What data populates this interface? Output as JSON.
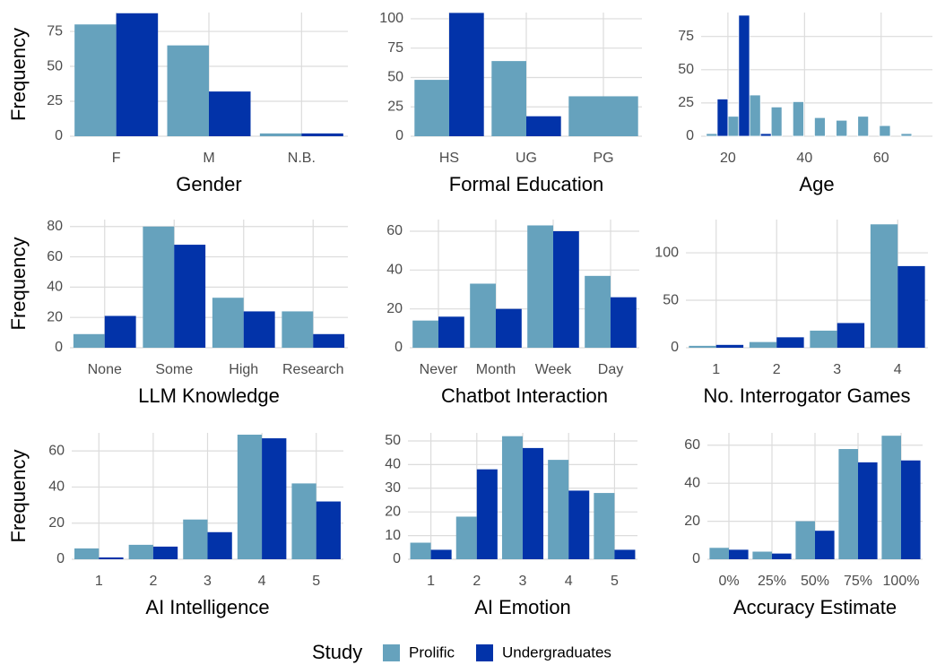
{
  "legend_title": "Study",
  "chart_data": [
    {
      "type": "bar",
      "xlabel": "Gender",
      "ylabel": "Frequency",
      "categories": [
        "F",
        "M",
        "N.B."
      ],
      "series": [
        {
          "name": "Prolific",
          "color": "#66a2bd",
          "values": [
            80,
            65,
            2
          ]
        },
        {
          "name": "Undergraduates",
          "color": "#0233a9",
          "values": [
            88,
            32,
            2
          ]
        }
      ],
      "ylim": [
        0,
        88.5
      ],
      "yticks": [
        0,
        25,
        50,
        75
      ],
      "grid": true
    },
    {
      "type": "bar",
      "xlabel": "Formal Education",
      "categories": [
        "HS",
        "UG",
        "PG"
      ],
      "series": [
        {
          "name": "Prolific",
          "color": "#66a2bd",
          "values": [
            48,
            64,
            34
          ]
        },
        {
          "name": "Undergraduates",
          "color": "#0233a9",
          "values": [
            105,
            17,
            null
          ]
        }
      ],
      "ylim": [
        0,
        105.3
      ],
      "yticks": [
        0,
        25,
        50,
        75,
        100
      ],
      "grid": true
    },
    {
      "type": "histogram",
      "xlabel": "Age",
      "bins": [
        11.5,
        17.2,
        22.8,
        28.5,
        34.1,
        39.8,
        45.4,
        51.1,
        56.7,
        62.4,
        68.0
      ],
      "series": [
        {
          "name": "Prolific",
          "color": "#66a2bd",
          "values": [
            2,
            15,
            31,
            22,
            26,
            14,
            12,
            15,
            8,
            2
          ]
        },
        {
          "name": "Undergraduates",
          "color": "#0233a9",
          "values": [
            0,
            28,
            91,
            2,
            0,
            0,
            0,
            0,
            0,
            0
          ]
        }
      ],
      "xlim": [
        13,
        73.4
      ],
      "xticks": [
        20,
        40,
        60
      ],
      "ylim": [
        0,
        93
      ],
      "yticks": [
        0,
        25,
        50,
        75
      ],
      "grid": true
    },
    {
      "type": "bar",
      "xlabel": "LLM Knowledge",
      "ylabel": "Frequency",
      "categories": [
        "None",
        "Some",
        "High",
        "Research"
      ],
      "series": [
        {
          "name": "Prolific",
          "color": "#66a2bd",
          "values": [
            9,
            80,
            33,
            24
          ]
        },
        {
          "name": "Undergraduates",
          "color": "#0233a9",
          "values": [
            21,
            68,
            24,
            9
          ]
        }
      ],
      "ylim": [
        0,
        84.6
      ],
      "yticks": [
        0,
        20,
        40,
        60,
        80
      ],
      "grid": true
    },
    {
      "type": "bar",
      "xlabel": "Chatbot Interaction",
      "categories": [
        "Never",
        "Month",
        "Week",
        "Day"
      ],
      "series": [
        {
          "name": "Prolific",
          "color": "#66a2bd",
          "values": [
            14,
            33,
            63,
            37
          ]
        },
        {
          "name": "Undergraduates",
          "color": "#0233a9",
          "values": [
            16,
            20,
            60,
            26
          ]
        }
      ],
      "ylim": [
        0,
        66
      ],
      "yticks": [
        0,
        20,
        40,
        60
      ],
      "grid": true
    },
    {
      "type": "bar",
      "xlabel": "No. Interrogator Games",
      "categories": [
        "1",
        "2",
        "3",
        "4"
      ],
      "series": [
        {
          "name": "Prolific",
          "color": "#66a2bd",
          "values": [
            2,
            6,
            18,
            130
          ]
        },
        {
          "name": "Undergraduates",
          "color": "#0233a9",
          "values": [
            3,
            11,
            26,
            86
          ]
        }
      ],
      "ylim": [
        0,
        135
      ],
      "yticks": [
        0,
        50,
        100
      ],
      "grid": true
    },
    {
      "type": "bar",
      "xlabel": "AI Intelligence",
      "ylabel": "Frequency",
      "categories": [
        "1",
        "2",
        "3",
        "4",
        "5"
      ],
      "series": [
        {
          "name": "Prolific",
          "color": "#66a2bd",
          "values": [
            6,
            8,
            22,
            69,
            42
          ]
        },
        {
          "name": "Undergraduates",
          "color": "#0233a9",
          "values": [
            1,
            7,
            15,
            67,
            32
          ]
        }
      ],
      "ylim": [
        0,
        70
      ],
      "yticks": [
        0,
        20,
        40,
        60
      ],
      "grid": true
    },
    {
      "type": "bar",
      "xlabel": "AI Emotion",
      "categories": [
        "1",
        "2",
        "3",
        "4",
        "5"
      ],
      "series": [
        {
          "name": "Prolific",
          "color": "#66a2bd",
          "values": [
            7,
            18,
            52,
            42,
            28
          ]
        },
        {
          "name": "Undergraduates",
          "color": "#0233a9",
          "values": [
            4,
            38,
            47,
            29,
            4
          ]
        }
      ],
      "ylim": [
        0,
        53.4
      ],
      "yticks": [
        0,
        10,
        20,
        30,
        40,
        50
      ],
      "grid": true
    },
    {
      "type": "bar",
      "xlabel": "Accuracy Estimate",
      "categories": [
        "0%",
        "25%",
        "50%",
        "75%",
        "100%"
      ],
      "series": [
        {
          "name": "Prolific",
          "color": "#66a2bd",
          "values": [
            6,
            4,
            20,
            58,
            65
          ]
        },
        {
          "name": "Undergraduates",
          "color": "#0233a9",
          "values": [
            5,
            3,
            15,
            51,
            52
          ]
        }
      ],
      "ylim": [
        0,
        66.5
      ],
      "yticks": [
        0,
        20,
        40,
        60
      ],
      "grid": true
    }
  ]
}
